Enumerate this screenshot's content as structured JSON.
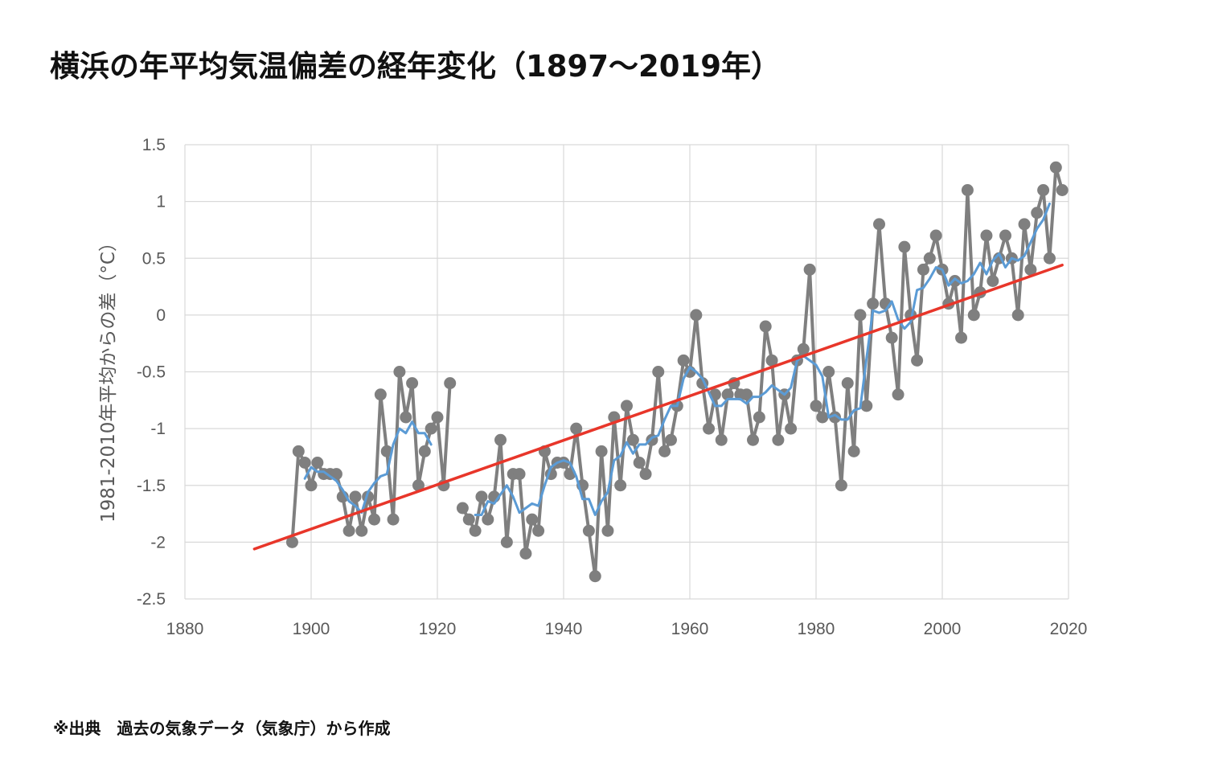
{
  "title": "横浜の年平均気温偏差の経年変化（1897〜2019年）",
  "source_note": "※出典　過去の気象データ（気象庁）から作成",
  "chart_data": {
    "type": "line",
    "title": "横浜の年平均気温偏差の経年変化（1897〜2019年）",
    "ylabel": "1981-2010年平均からの差（°C）",
    "xlabel": "",
    "xlim": [
      1880,
      2020
    ],
    "ylim": [
      -2.5,
      1.5
    ],
    "x_ticks": [
      "1880",
      "1900",
      "1920",
      "1940",
      "1960",
      "1980",
      "2000",
      "2020"
    ],
    "y_ticks": [
      "1.5",
      "1",
      "0.5",
      "0",
      "-0.5",
      "-1",
      "-1.5",
      "-2",
      "-2.5"
    ],
    "grid": true,
    "legend": "none",
    "colors": {
      "annual": "#7f7f7f",
      "moving_average": "#5b9bd5",
      "trend": "#e8362a",
      "grid": "#d9d9d9"
    },
    "series": [
      {
        "role": "annual",
        "segments": [
          [
            [
              1897,
              -2.0
            ],
            [
              1898,
              -1.2
            ],
            [
              1899,
              -1.3
            ],
            [
              1900,
              -1.5
            ],
            [
              1901,
              -1.3
            ],
            [
              1902,
              -1.4
            ],
            [
              1903,
              -1.4
            ],
            [
              1904,
              -1.4
            ],
            [
              1905,
              -1.6
            ],
            [
              1906,
              -1.9
            ],
            [
              1907,
              -1.6
            ],
            [
              1908,
              -1.9
            ],
            [
              1909,
              -1.6
            ],
            [
              1910,
              -1.8
            ],
            [
              1911,
              -0.7
            ],
            [
              1912,
              -1.2
            ],
            [
              1913,
              -1.8
            ],
            [
              1914,
              -0.5
            ],
            [
              1915,
              -0.9
            ],
            [
              1916,
              -0.6
            ],
            [
              1917,
              -1.5
            ],
            [
              1918,
              -1.2
            ],
            [
              1919,
              -1.0
            ],
            [
              1920,
              -0.9
            ],
            [
              1921,
              -1.5
            ],
            [
              1922,
              -0.6
            ]
          ],
          [
            [
              1924,
              -1.7
            ],
            [
              1925,
              -1.8
            ],
            [
              1926,
              -1.9
            ],
            [
              1927,
              -1.6
            ],
            [
              1928,
              -1.8
            ],
            [
              1929,
              -1.6
            ],
            [
              1930,
              -1.1
            ],
            [
              1931,
              -2.0
            ],
            [
              1932,
              -1.4
            ],
            [
              1933,
              -1.4
            ],
            [
              1934,
              -2.1
            ],
            [
              1935,
              -1.8
            ],
            [
              1936,
              -1.9
            ],
            [
              1937,
              -1.2
            ],
            [
              1938,
              -1.4
            ],
            [
              1939,
              -1.3
            ],
            [
              1940,
              -1.3
            ],
            [
              1941,
              -1.4
            ],
            [
              1942,
              -1.0
            ],
            [
              1943,
              -1.5
            ],
            [
              1944,
              -1.9
            ],
            [
              1945,
              -2.3
            ],
            [
              1946,
              -1.2
            ],
            [
              1947,
              -1.9
            ],
            [
              1948,
              -0.9
            ],
            [
              1949,
              -1.5
            ],
            [
              1950,
              -0.8
            ],
            [
              1951,
              -1.1
            ],
            [
              1952,
              -1.3
            ],
            [
              1953,
              -1.4
            ],
            [
              1954,
              -1.1
            ],
            [
              1955,
              -0.5
            ],
            [
              1956,
              -1.2
            ],
            [
              1957,
              -1.1
            ],
            [
              1958,
              -0.8
            ],
            [
              1959,
              -0.4
            ],
            [
              1960,
              -0.5
            ],
            [
              1961,
              0.0
            ],
            [
              1962,
              -0.6
            ],
            [
              1963,
              -1.0
            ],
            [
              1964,
              -0.7
            ],
            [
              1965,
              -1.1
            ],
            [
              1966,
              -0.7
            ],
            [
              1967,
              -0.6
            ],
            [
              1968,
              -0.7
            ],
            [
              1969,
              -0.7
            ],
            [
              1970,
              -1.1
            ],
            [
              1971,
              -0.9
            ],
            [
              1972,
              -0.1
            ],
            [
              1973,
              -0.4
            ],
            [
              1974,
              -1.1
            ],
            [
              1975,
              -0.7
            ],
            [
              1976,
              -1.0
            ],
            [
              1977,
              -0.4
            ],
            [
              1978,
              -0.3
            ],
            [
              1979,
              0.4
            ],
            [
              1980,
              -0.8
            ],
            [
              1981,
              -0.9
            ],
            [
              1982,
              -0.5
            ],
            [
              1983,
              -0.9
            ],
            [
              1984,
              -1.5
            ],
            [
              1985,
              -0.6
            ],
            [
              1986,
              -1.2
            ],
            [
              1987,
              0.0
            ],
            [
              1988,
              -0.8
            ],
            [
              1989,
              0.1
            ],
            [
              1990,
              0.8
            ],
            [
              1991,
              0.1
            ],
            [
              1992,
              -0.2
            ],
            [
              1993,
              -0.7
            ],
            [
              1994,
              0.6
            ],
            [
              1995,
              0.0
            ],
            [
              1996,
              -0.4
            ],
            [
              1997,
              0.4
            ],
            [
              1998,
              0.5
            ],
            [
              1999,
              0.7
            ],
            [
              2000,
              0.4
            ],
            [
              2001,
              0.1
            ],
            [
              2002,
              0.3
            ],
            [
              2003,
              -0.2
            ],
            [
              2004,
              1.1
            ],
            [
              2005,
              0.0
            ],
            [
              2006,
              0.2
            ],
            [
              2007,
              0.7
            ],
            [
              2008,
              0.3
            ],
            [
              2009,
              0.5
            ],
            [
              2010,
              0.7
            ],
            [
              2011,
              0.5
            ],
            [
              2012,
              0.0
            ],
            [
              2013,
              0.8
            ],
            [
              2014,
              0.4
            ],
            [
              2015,
              0.9
            ],
            [
              2016,
              1.1
            ],
            [
              2017,
              0.5
            ],
            [
              2018,
              1.3
            ],
            [
              2019,
              1.1
            ]
          ]
        ]
      },
      {
        "role": "moving_average",
        "segments": [
          [
            [
              1899,
              -1.44
            ],
            [
              1900,
              -1.34
            ],
            [
              1901,
              -1.38
            ],
            [
              1902,
              -1.38
            ],
            [
              1903,
              -1.42
            ],
            [
              1904,
              -1.46
            ],
            [
              1905,
              -1.54
            ],
            [
              1906,
              -1.64
            ],
            [
              1907,
              -1.68
            ],
            [
              1908,
              -1.74
            ],
            [
              1909,
              -1.56
            ],
            [
              1910,
              -1.48
            ],
            [
              1911,
              -1.42
            ],
            [
              1912,
              -1.4
            ],
            [
              1913,
              -1.14
            ],
            [
              1914,
              -1.0
            ],
            [
              1915,
              -1.04
            ],
            [
              1916,
              -0.94
            ],
            [
              1917,
              -1.04
            ],
            [
              1918,
              -1.04
            ],
            [
              1919,
              -1.14
            ]
          ],
          [
            [
              1926,
              -1.76
            ],
            [
              1927,
              -1.76
            ],
            [
              1928,
              -1.64
            ],
            [
              1929,
              -1.66
            ],
            [
              1930,
              -1.58
            ],
            [
              1931,
              -1.5
            ],
            [
              1932,
              -1.6
            ],
            [
              1933,
              -1.74
            ],
            [
              1934,
              -1.7
            ],
            [
              1935,
              -1.66
            ],
            [
              1936,
              -1.68
            ],
            [
              1937,
              -1.5
            ],
            [
              1938,
              -1.34
            ],
            [
              1939,
              -1.3
            ],
            [
              1940,
              -1.28
            ],
            [
              1941,
              -1.3
            ],
            [
              1942,
              -1.42
            ],
            [
              1943,
              -1.62
            ],
            [
              1944,
              -1.62
            ],
            [
              1945,
              -1.76
            ],
            [
              1946,
              -1.64
            ],
            [
              1947,
              -1.56
            ],
            [
              1948,
              -1.28
            ],
            [
              1949,
              -1.24
            ],
            [
              1950,
              -1.12
            ],
            [
              1951,
              -1.22
            ],
            [
              1952,
              -1.14
            ],
            [
              1953,
              -1.14
            ],
            [
              1954,
              -1.08
            ],
            [
              1955,
              -1.06
            ],
            [
              1956,
              -0.92
            ],
            [
              1957,
              -0.8
            ],
            [
              1958,
              -0.8
            ],
            [
              1959,
              -0.56
            ],
            [
              1960,
              -0.46
            ],
            [
              1961,
              -0.5
            ],
            [
              1962,
              -0.56
            ],
            [
              1963,
              -0.68
            ],
            [
              1964,
              -0.8
            ],
            [
              1965,
              -0.8
            ],
            [
              1966,
              -0.74
            ],
            [
              1967,
              -0.74
            ],
            [
              1968,
              -0.74
            ],
            [
              1969,
              -0.78
            ],
            [
              1970,
              -0.72
            ],
            [
              1971,
              -0.72
            ],
            [
              1972,
              -0.68
            ],
            [
              1973,
              -0.62
            ],
            [
              1974,
              -0.66
            ],
            [
              1975,
              -0.7
            ],
            [
              1976,
              -0.64
            ],
            [
              1977,
              -0.4
            ],
            [
              1978,
              -0.36
            ],
            [
              1979,
              -0.4
            ],
            [
              1980,
              -0.44
            ],
            [
              1981,
              -0.54
            ],
            [
              1982,
              -0.9
            ],
            [
              1983,
              -0.88
            ],
            [
              1984,
              -0.92
            ],
            [
              1985,
              -0.92
            ],
            [
              1986,
              -0.84
            ],
            [
              1987,
              -0.82
            ],
            [
              1988,
              -0.38
            ],
            [
              1989,
              0.04
            ],
            [
              1990,
              0.02
            ],
            [
              1991,
              0.04
            ],
            [
              1992,
              0.12
            ],
            [
              1993,
              -0.04
            ],
            [
              1994,
              -0.12
            ],
            [
              1995,
              -0.06
            ],
            [
              1996,
              0.22
            ],
            [
              1997,
              0.24
            ],
            [
              1998,
              0.32
            ],
            [
              1999,
              0.42
            ],
            [
              2000,
              0.4
            ],
            [
              2001,
              0.26
            ],
            [
              2002,
              0.32
            ],
            [
              2003,
              0.28
            ],
            [
              2004,
              0.3
            ],
            [
              2005,
              0.36
            ],
            [
              2006,
              0.46
            ],
            [
              2007,
              0.36
            ],
            [
              2008,
              0.48
            ],
            [
              2009,
              0.54
            ],
            [
              2010,
              0.42
            ],
            [
              2011,
              0.5
            ],
            [
              2012,
              0.48
            ],
            [
              2013,
              0.52
            ],
            [
              2014,
              0.64
            ],
            [
              2015,
              0.76
            ],
            [
              2016,
              0.84
            ],
            [
              2017,
              0.98
            ]
          ]
        ]
      },
      {
        "role": "trend",
        "segments": [
          [
            [
              1891,
              -2.06
            ],
            [
              2019,
              0.44
            ]
          ]
        ]
      }
    ]
  }
}
